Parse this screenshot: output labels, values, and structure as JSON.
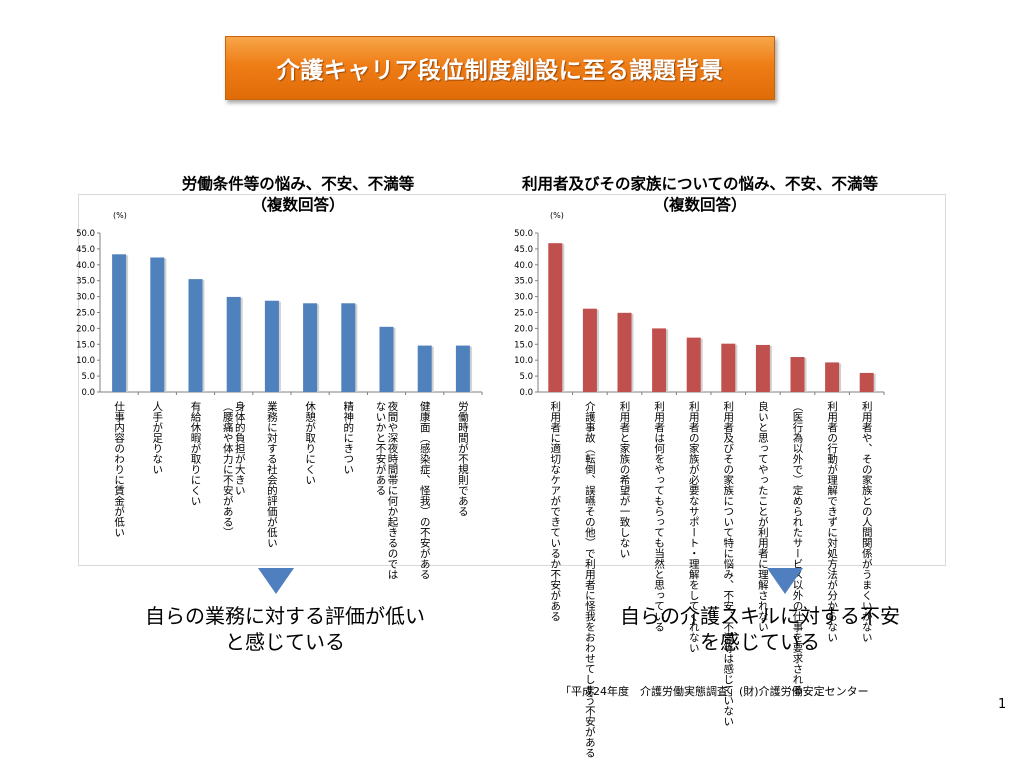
{
  "slide": {
    "title": "介護キャリア段位制度創設に至る課題背景",
    "conclusions": [
      "自らの業務に対する評価が低い\nと感じている",
      "自らの介護スキルに対する不安\nを感じている"
    ],
    "source": "「平成24年度　介護労働実態調査」(財)介護労働安定センター",
    "page_number": "1"
  },
  "chart_data": [
    {
      "type": "bar",
      "title": "労働条件等の悩み、不安、不満等\n（複数回答）",
      "unit_label": "(%)",
      "ylim": [
        0,
        50
      ],
      "yticks": [
        "50.0",
        "45.0",
        "40.0",
        "35.0",
        "30.0",
        "25.0",
        "20.0",
        "15.0",
        "10.0",
        "5.0",
        "0.0"
      ],
      "color": "#4f81bd",
      "categories": [
        "仕事内容のわりに賃金が低い",
        "人手が足りない",
        "有給休暇が取りにくい",
        "身体的負担が大きい\n（腰痛や体力に不安がある）",
        "業務に対する社会的評価が低い",
        "休憩が取りにくい",
        "精神的にきつい",
        "夜間や深夜時間帯に何か起きるのでは\nないかと不安がある",
        "健康面（感染症、怪我）の不安がある",
        "労働時間が不規則である"
      ],
      "values": [
        43.3,
        42.3,
        35.5,
        29.9,
        28.7,
        27.9,
        27.9,
        20.5,
        14.6,
        14.6
      ]
    },
    {
      "type": "bar",
      "title": "利用者及びその家族についての悩み、不安、不満等\n（複数回答）",
      "unit_label": "(%)",
      "ylim": [
        0,
        50
      ],
      "yticks": [
        "50.0",
        "45.0",
        "40.0",
        "35.0",
        "30.0",
        "25.0",
        "20.0",
        "15.0",
        "10.0",
        "5.0",
        "0.0"
      ],
      "color": "#c0504d",
      "categories": [
        "利用者に適切なケアができているか不安がある",
        "介護事故（転倒、誤嚥その他）で利用者に怪我をおわせてしまう不安がある",
        "利用者と家族の希望が一致しない",
        "利用者は何をやってもらっても当然と思っている",
        "利用者の家族が必要なサポート・理解をしてくれない",
        "利用者及びその家族について特に悩み、不安、不満等は感じていない",
        "良いと思ってやったことが利用者に理解されない",
        "（医行為以外で）定められたサービス以外の仕事を要求される",
        "利用者の行動が理解できずに対処方法が分からない",
        "利用者や、その家族との人間関係がうまくいかない"
      ],
      "values": [
        46.8,
        26.2,
        24.9,
        20.0,
        17.1,
        15.2,
        14.8,
        11.0,
        9.3,
        6.0
      ]
    }
  ]
}
